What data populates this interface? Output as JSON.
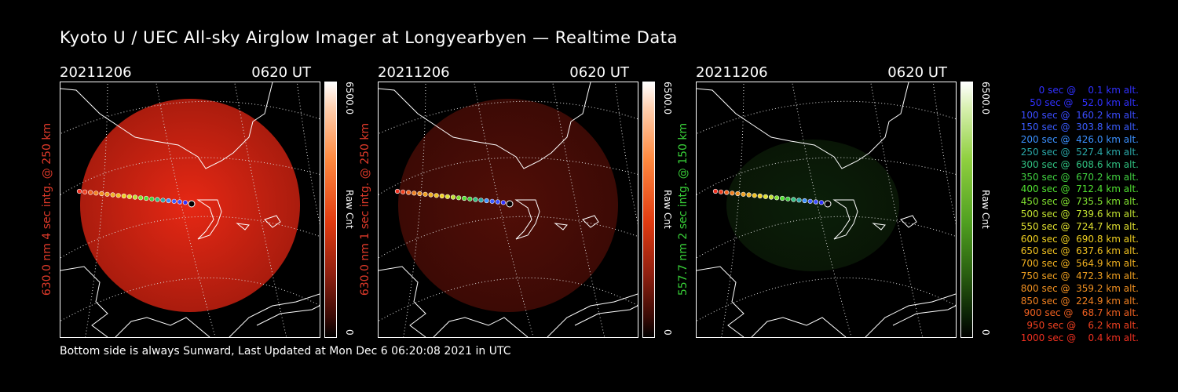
{
  "title": "Kyoto U / UEC All-sky Airglow Imager at Longyearbyen — Realtime Data",
  "footer": "Bottom side is always Sunward, Last Updated at Mon Dec  6 06:20:08 2021 in UTC",
  "panels": [
    {
      "date": "20211206",
      "time": "0620 UT",
      "side_label": "630.0 nm  4 sec intg. @ 250 km",
      "color": "#e03a2a",
      "cbar_max": "6500.0",
      "cbar_unit": "Raw Cnt",
      "cbar_min": "0",
      "brightness": 1.0,
      "tint": "red"
    },
    {
      "date": "20211206",
      "time": "0620 UT",
      "side_label": "630.0 nm  1 sec intg. @ 250 km",
      "color": "#e03a2a",
      "cbar_max": "6500.0",
      "cbar_unit": "Raw Cnt",
      "cbar_min": "0",
      "brightness": 0.35,
      "tint": "red"
    },
    {
      "date": "20211206",
      "time": "0620 UT",
      "side_label": "557.7 nm  2 sec intg. @ 150 km",
      "color": "#38d038",
      "cbar_max": "6500.0",
      "cbar_unit": "Raw Cnt",
      "cbar_min": "0",
      "brightness": 0.35,
      "tint": "green"
    }
  ],
  "legend": [
    {
      "text": "   0 sec @    0.1 km alt.",
      "color": "#3030ff"
    },
    {
      "text": "  50 sec @   52.0 km alt.",
      "color": "#3030ff"
    },
    {
      "text": " 100 sec @  160.2 km alt.",
      "color": "#3a4cff"
    },
    {
      "text": " 150 sec @  303.8 km alt.",
      "color": "#3a5cff"
    },
    {
      "text": " 200 sec @  426.0 km alt.",
      "color": "#3a90ff"
    },
    {
      "text": " 250 sec @  527.4 km alt.",
      "color": "#2aa8a8"
    },
    {
      "text": " 300 sec @  608.6 km alt.",
      "color": "#30c080"
    },
    {
      "text": " 350 sec @  670.2 km alt.",
      "color": "#40d040"
    },
    {
      "text": " 400 sec @  712.4 km alt.",
      "color": "#50e030"
    },
    {
      "text": " 450 sec @  735.5 km alt.",
      "color": "#80e030"
    },
    {
      "text": " 500 sec @  739.6 km alt.",
      "color": "#c0e030"
    },
    {
      "text": " 550 sec @  724.7 km alt.",
      "color": "#e0e030"
    },
    {
      "text": " 600 sec @  690.8 km alt.",
      "color": "#f0d020"
    },
    {
      "text": " 650 sec @  637.6 km alt.",
      "color": "#f0c020"
    },
    {
      "text": " 700 sec @  564.9 km alt.",
      "color": "#f0b020"
    },
    {
      "text": " 750 sec @  472.3 km alt.",
      "color": "#f0a020"
    },
    {
      "text": " 800 sec @  359.2 km alt.",
      "color": "#f09020"
    },
    {
      "text": " 850 sec @  224.9 km alt.",
      "color": "#f08020"
    },
    {
      "text": " 900 sec @   68.7 km alt.",
      "color": "#f06020"
    },
    {
      "text": " 950 sec @    6.2 km alt.",
      "color": "#f04020"
    },
    {
      "text": "1000 sec @    0.4 km alt.",
      "color": "#f03020"
    }
  ]
}
